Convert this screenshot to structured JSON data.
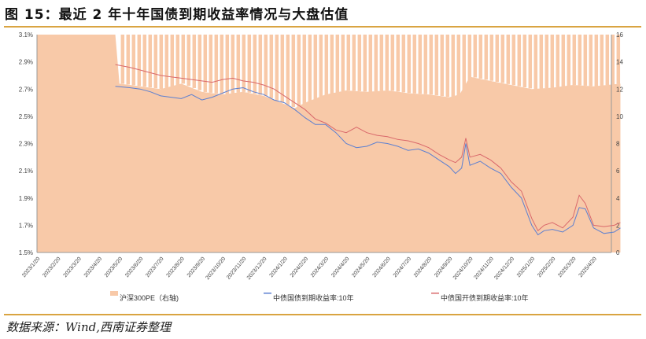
{
  "title": "图 15：最近 2 年十年国债到期收益率情况与大盘估值",
  "source": "数据来源：Wind,西南证券整理",
  "chart_data": {
    "type": "line",
    "title": "最近2年十年国债到期收益率情况与大盘估值",
    "y_left": {
      "range": [
        1.5,
        3.1
      ],
      "ticks": [
        "1.5%",
        "1.7%",
        "1.9%",
        "2.1%",
        "2.3%",
        "2.5%",
        "2.7%",
        "2.9%",
        "3.1%"
      ]
    },
    "y_right": {
      "range": [
        0,
        16
      ],
      "ticks": [
        "0",
        "2",
        "4",
        "6",
        "8",
        "10",
        "12",
        "14",
        "16"
      ]
    },
    "x_ticks": [
      "2023/1/20",
      "2023/2/20",
      "2023/3/20",
      "2023/4/20",
      "2023/5/20",
      "2023/6/20",
      "2023/7/20",
      "2023/8/20",
      "2023/9/20",
      "2023/10/20",
      "2023/11/20",
      "2023/12/20",
      "2024/1/20",
      "2024/2/20",
      "2024/3/20",
      "2024/4/20",
      "2024/5/20",
      "2024/6/20",
      "2024/7/20",
      "2024/8/20",
      "2024/9/20",
      "2024/10/20",
      "2024/11/20",
      "2024/12/20",
      "2025/1/20",
      "2025/2/20",
      "2025/3/20",
      "2025/4/20"
    ],
    "legend": [
      "沪深300PE（右轴)",
      "中债国债到期收益率:10年",
      "中债国开债到期收益率:10年"
    ],
    "legend_position": "bottom",
    "series": [
      {
        "name": "沪深300PE（右轴)",
        "axis": "right",
        "color": "#f8c9a8",
        "x": [
          0,
          3.8,
          4,
          5,
          6,
          7,
          8,
          9,
          10,
          11,
          12,
          12.5,
          13,
          14,
          15,
          16,
          17,
          18,
          19,
          20,
          20.5,
          21,
          22,
          23,
          24,
          25,
          26,
          27,
          28.3
        ],
        "y": [
          16,
          16,
          12.4,
          12.2,
          12.0,
          12.4,
          11.8,
          11.6,
          11.8,
          11.5,
          10.9,
          10.6,
          11.0,
          11.6,
          11.9,
          11.8,
          11.9,
          11.7,
          11.6,
          11.4,
          11.6,
          12.9,
          12.6,
          12.3,
          12.0,
          12.1,
          12.3,
          12.2,
          12.4
        ]
      },
      {
        "name": "中债国债到期收益率:10年",
        "axis": "left",
        "color": "#5b7fd1",
        "x": [
          3.8,
          4.5,
          5,
          5.5,
          6,
          6.5,
          7,
          7.5,
          8,
          8.5,
          9,
          9.5,
          10,
          10.5,
          11,
          11.5,
          12,
          12.5,
          13,
          13.5,
          14,
          14.5,
          15,
          15.5,
          16,
          16.5,
          17,
          17.5,
          18,
          18.5,
          19,
          19.5,
          20,
          20.3,
          20.6,
          20.8,
          21,
          21.5,
          22,
          22.5,
          23,
          23.5,
          24,
          24.3,
          24.6,
          25,
          25.5,
          26,
          26.3,
          26.6,
          27,
          27.5,
          28,
          28.3
        ],
        "y": [
          2.72,
          2.71,
          2.7,
          2.68,
          2.65,
          2.64,
          2.63,
          2.66,
          2.62,
          2.64,
          2.67,
          2.7,
          2.71,
          2.68,
          2.66,
          2.62,
          2.6,
          2.55,
          2.49,
          2.44,
          2.44,
          2.38,
          2.3,
          2.27,
          2.28,
          2.31,
          2.3,
          2.28,
          2.25,
          2.26,
          2.23,
          2.18,
          2.13,
          2.08,
          2.12,
          2.3,
          2.14,
          2.17,
          2.12,
          2.08,
          1.98,
          1.9,
          1.7,
          1.63,
          1.66,
          1.67,
          1.65,
          1.7,
          1.83,
          1.82,
          1.68,
          1.64,
          1.65,
          1.68
        ]
      },
      {
        "name": "中债国开债到期收益率:10年",
        "axis": "left",
        "color": "#d9686b",
        "x": [
          3.8,
          4.5,
          5,
          5.5,
          6,
          6.5,
          7,
          7.5,
          8,
          8.5,
          9,
          9.5,
          10,
          10.5,
          11,
          11.5,
          12,
          12.5,
          13,
          13.5,
          14,
          14.5,
          15,
          15.5,
          16,
          16.5,
          17,
          17.5,
          18,
          18.5,
          19,
          19.5,
          20,
          20.3,
          20.6,
          20.8,
          21,
          21.5,
          22,
          22.5,
          23,
          23.5,
          24,
          24.3,
          24.6,
          25,
          25.5,
          26,
          26.3,
          26.6,
          27,
          27.5,
          28,
          28.3
        ],
        "y": [
          2.88,
          2.86,
          2.84,
          2.82,
          2.8,
          2.79,
          2.78,
          2.77,
          2.76,
          2.75,
          2.77,
          2.78,
          2.76,
          2.75,
          2.73,
          2.7,
          2.65,
          2.6,
          2.55,
          2.48,
          2.45,
          2.4,
          2.38,
          2.42,
          2.38,
          2.36,
          2.35,
          2.33,
          2.32,
          2.3,
          2.27,
          2.22,
          2.18,
          2.16,
          2.2,
          2.34,
          2.2,
          2.22,
          2.18,
          2.12,
          2.02,
          1.95,
          1.75,
          1.66,
          1.7,
          1.72,
          1.68,
          1.76,
          1.92,
          1.86,
          1.7,
          1.69,
          1.7,
          1.72
        ]
      }
    ]
  }
}
